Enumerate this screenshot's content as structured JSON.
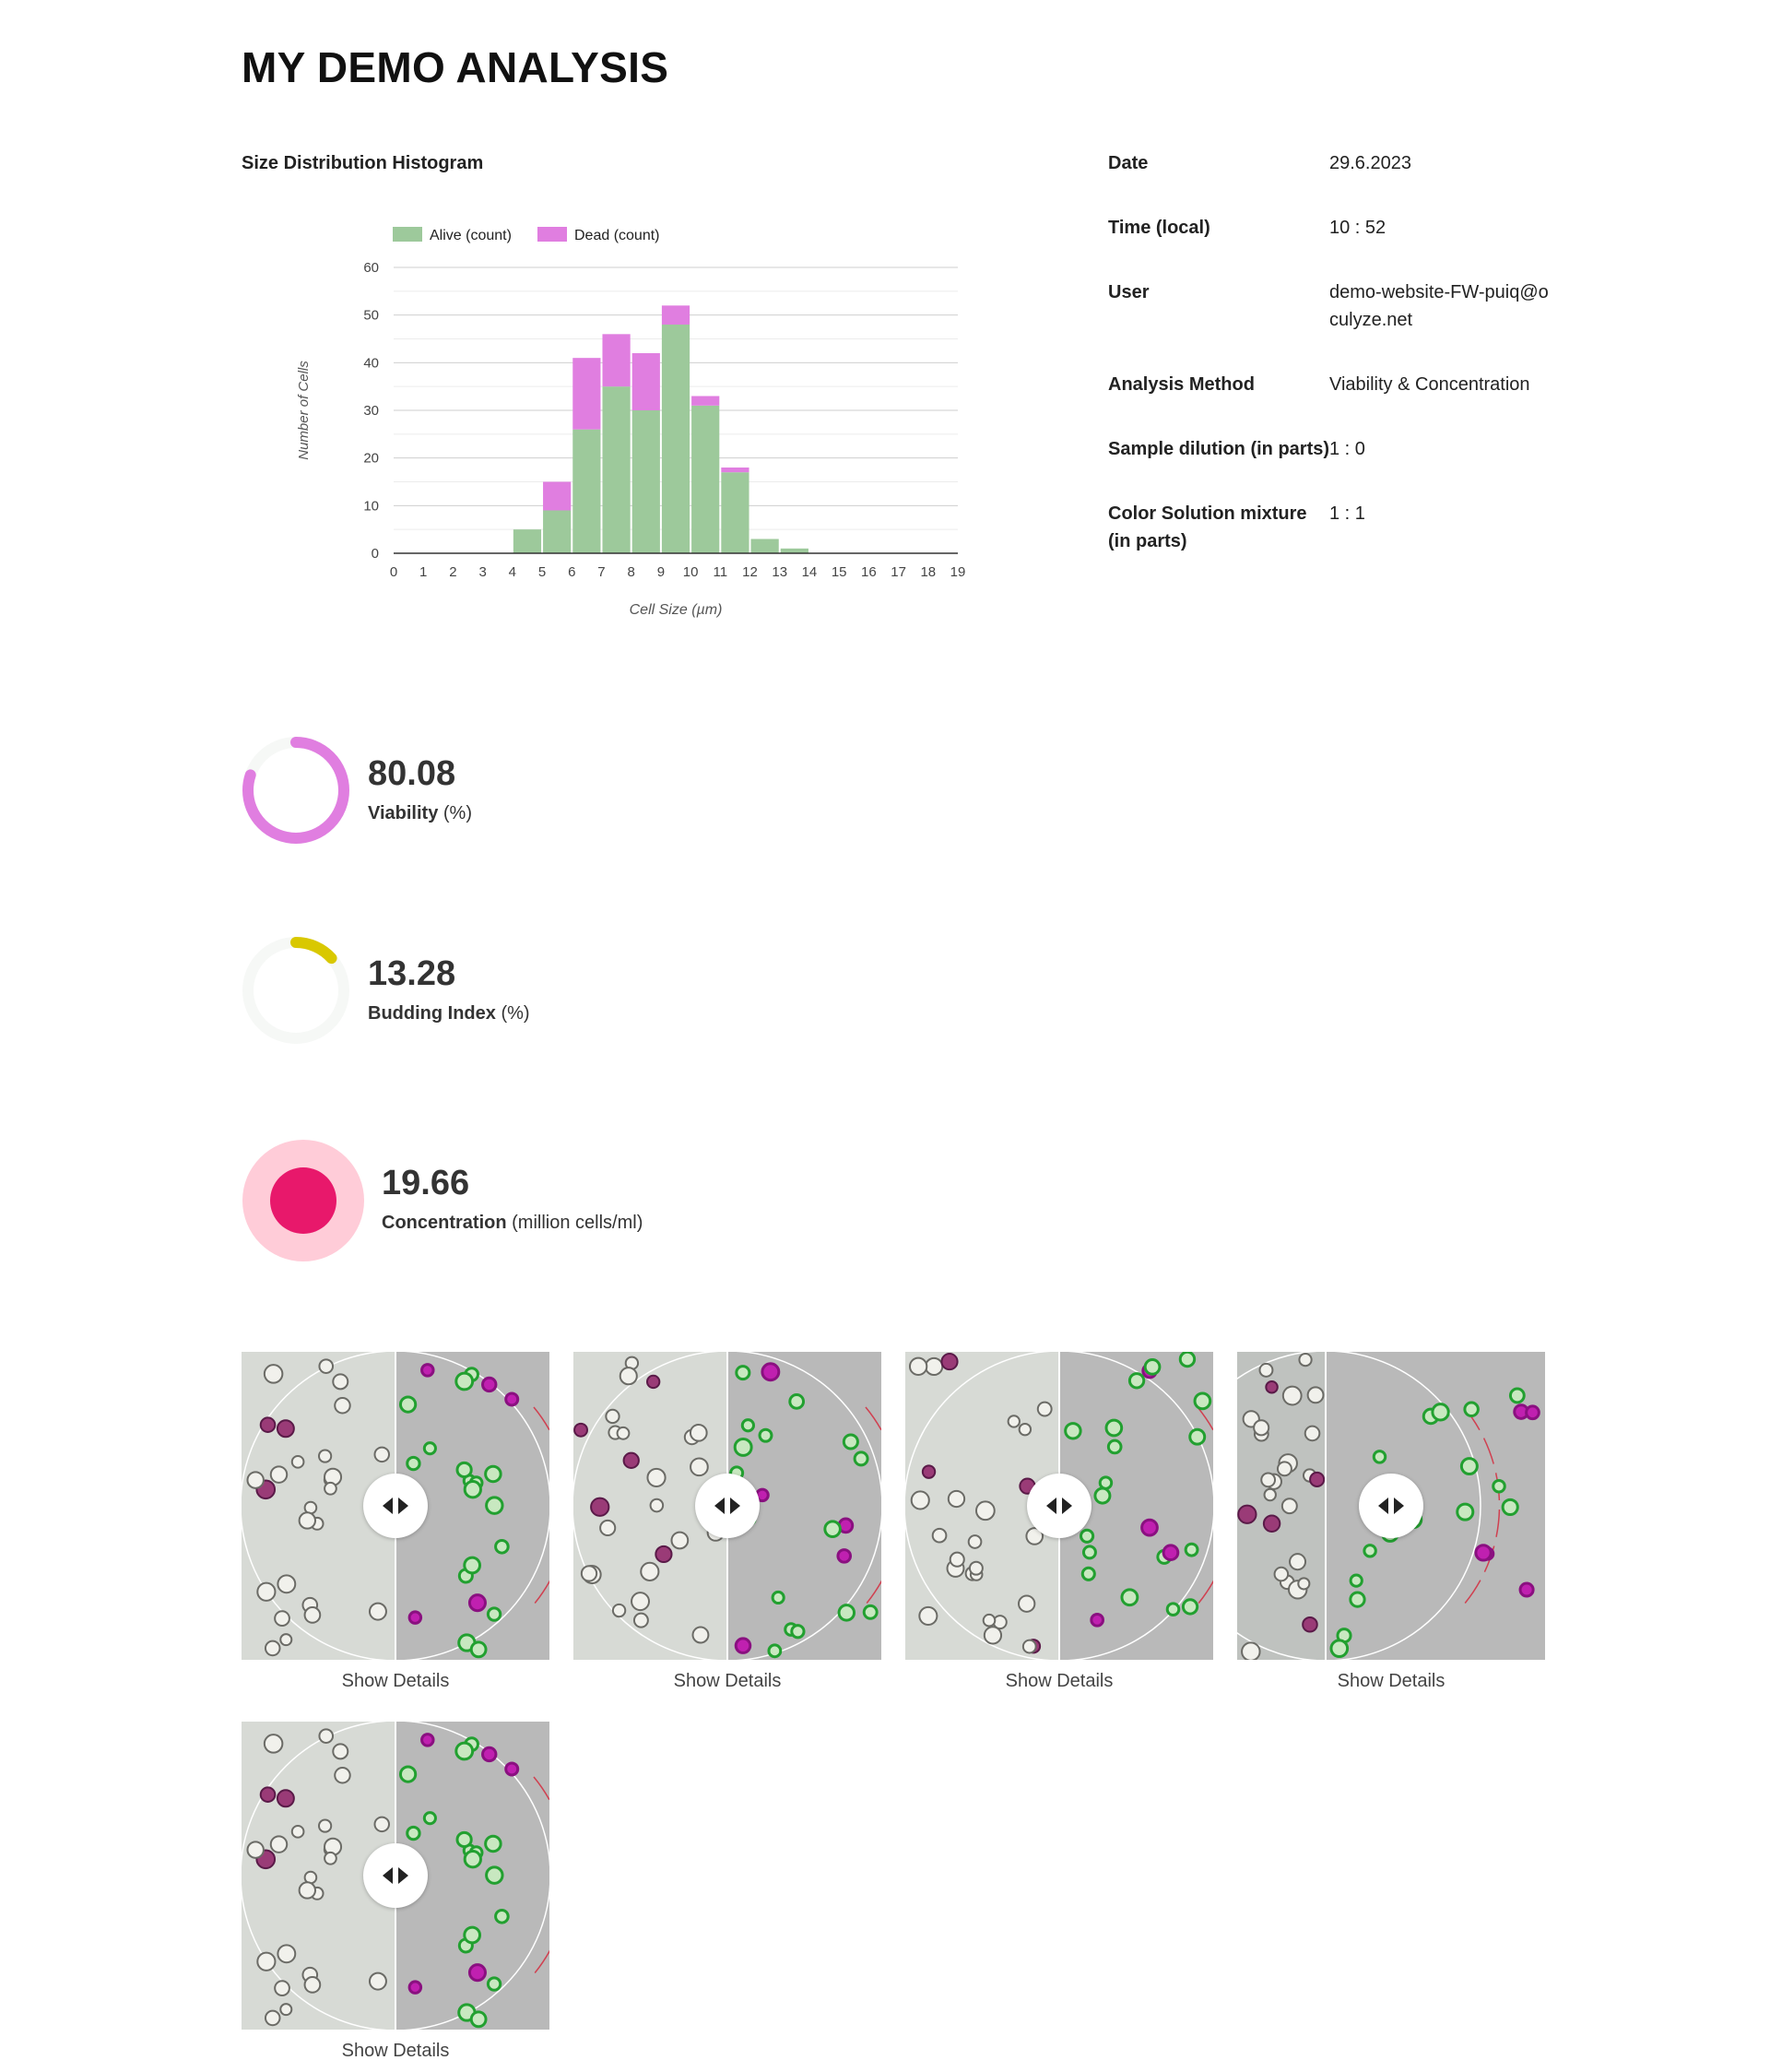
{
  "page": {
    "title": "MY DEMO ANALYSIS"
  },
  "histogram": {
    "title": "Size Distribution Histogram"
  },
  "chart_data": {
    "type": "bar",
    "stacked": true,
    "categories": [
      "0",
      "1",
      "2",
      "3",
      "4",
      "5",
      "6",
      "7",
      "8",
      "9",
      "10",
      "11",
      "12",
      "13",
      "14",
      "15",
      "16",
      "17",
      "18",
      "19"
    ],
    "series": [
      {
        "name": "Alive (count)",
        "color": "#9dc99b",
        "values": [
          0,
          0,
          0,
          0,
          5,
          9,
          26,
          35,
          30,
          48,
          31,
          17,
          3,
          1,
          0,
          0,
          0,
          0,
          0,
          0
        ]
      },
      {
        "name": "Dead (count)",
        "color": "#e07ee0",
        "values": [
          0,
          0,
          0,
          0,
          0,
          6,
          15,
          11,
          12,
          4,
          2,
          1,
          0,
          0,
          0,
          0,
          0,
          0,
          0,
          0
        ]
      }
    ],
    "xlabel": "Cell Size (µm)",
    "ylabel": "Number of Cells",
    "ylim": [
      0,
      60
    ],
    "yticks": [
      "0",
      "10",
      "20",
      "30",
      "40",
      "50",
      "60"
    ],
    "grid": true,
    "legend": "top-left"
  },
  "info": {
    "rows": [
      {
        "label": "Date",
        "value": "29.6.2023"
      },
      {
        "label": "Time (local)",
        "value": "10 : 52"
      },
      {
        "label": "User",
        "value": "demo-website-FW-puiq@oculyze.net"
      },
      {
        "label": "Analysis Method",
        "value": "Viability & Concentration"
      },
      {
        "label": "Sample dilution (in parts)",
        "value": "1 : 0"
      },
      {
        "label": "Color Solution mixture (in parts)",
        "value": "1 : 1"
      }
    ]
  },
  "metrics": {
    "viability": {
      "value": "80.08",
      "label": "Viability",
      "unit": "(%)",
      "fraction": 0.8008,
      "color": "#e07ee0"
    },
    "budding": {
      "value": "13.28",
      "label": "Budding Index",
      "unit": "(%)",
      "fraction": 0.1328,
      "color": "#d9c800"
    },
    "concentration": {
      "value": "19.66",
      "label": "Concentration",
      "unit": "(million cells/ml)",
      "color": "#e8186b",
      "halo_color": "#ffccd8"
    }
  },
  "gallery": {
    "items": [
      {
        "link": "Show Details"
      },
      {
        "link": "Show Details"
      },
      {
        "link": "Show Details"
      },
      {
        "link": "Show Details"
      },
      {
        "link": "Show Details"
      }
    ]
  }
}
